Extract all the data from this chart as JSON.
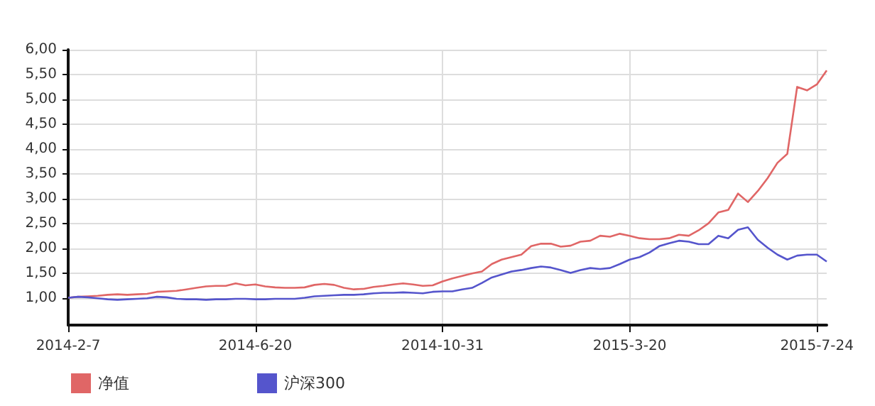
{
  "chart_data": {
    "type": "line",
    "categories": [
      "2014-2-7",
      null,
      null,
      null,
      null,
      null,
      null,
      null,
      null,
      null,
      null,
      null,
      null,
      null,
      null,
      null,
      null,
      null,
      null,
      "2014-6-20",
      null,
      null,
      null,
      null,
      null,
      null,
      null,
      null,
      null,
      null,
      null,
      null,
      null,
      null,
      null,
      null,
      null,
      null,
      "2014-10-31",
      null,
      null,
      null,
      null,
      null,
      null,
      null,
      null,
      null,
      null,
      null,
      null,
      null,
      null,
      null,
      null,
      null,
      null,
      "2015-3-20",
      null,
      null,
      null,
      null,
      null,
      null,
      null,
      null,
      null,
      null,
      null,
      null,
      null,
      null,
      null,
      null,
      null,
      null,
      "2015-7-24",
      null
    ],
    "series": [
      {
        "name": "净值",
        "color": "#e06666",
        "values": [
          1.0,
          1.02,
          1.03,
          1.04,
          1.06,
          1.07,
          1.06,
          1.07,
          1.08,
          1.12,
          1.13,
          1.14,
          1.17,
          1.2,
          1.23,
          1.24,
          1.24,
          1.29,
          1.25,
          1.27,
          1.23,
          1.21,
          1.2,
          1.2,
          1.21,
          1.26,
          1.28,
          1.26,
          1.2,
          1.17,
          1.18,
          1.22,
          1.24,
          1.27,
          1.29,
          1.27,
          1.24,
          1.25,
          1.33,
          1.39,
          1.44,
          1.49,
          1.53,
          1.68,
          1.77,
          1.82,
          1.87,
          2.04,
          2.09,
          2.09,
          2.03,
          2.05,
          2.13,
          2.15,
          2.25,
          2.23,
          2.29,
          2.25,
          2.2,
          2.18,
          2.18,
          2.2,
          2.27,
          2.25,
          2.36,
          2.5,
          2.72,
          2.77,
          3.1,
          2.93,
          3.15,
          3.41,
          3.72,
          3.9,
          5.25,
          5.18,
          5.3,
          5.58
        ]
      },
      {
        "name": "沪深300",
        "color": "#5555cc",
        "values": [
          1.0,
          1.02,
          1.01,
          0.99,
          0.97,
          0.96,
          0.97,
          0.98,
          0.99,
          1.02,
          1.01,
          0.98,
          0.97,
          0.97,
          0.96,
          0.97,
          0.97,
          0.98,
          0.98,
          0.97,
          0.97,
          0.98,
          0.98,
          0.98,
          1.0,
          1.03,
          1.04,
          1.05,
          1.06,
          1.06,
          1.07,
          1.09,
          1.1,
          1.1,
          1.11,
          1.1,
          1.09,
          1.12,
          1.13,
          1.13,
          1.17,
          1.2,
          1.3,
          1.41,
          1.47,
          1.53,
          1.56,
          1.6,
          1.63,
          1.61,
          1.56,
          1.5,
          1.56,
          1.6,
          1.58,
          1.6,
          1.68,
          1.77,
          1.82,
          1.91,
          2.04,
          2.1,
          2.15,
          2.13,
          2.08,
          2.08,
          2.25,
          2.2,
          2.37,
          2.42,
          2.17,
          2.01,
          1.87,
          1.77,
          1.85,
          1.87,
          1.87,
          1.73
        ]
      }
    ],
    "ylim": [
      0.45,
      6
    ],
    "yticks": [
      {
        "value": 1,
        "label": "1,00"
      },
      {
        "value": 1.5,
        "label": "1,50"
      },
      {
        "value": 2,
        "label": "2,00"
      },
      {
        "value": 2.5,
        "label": "2,50"
      },
      {
        "value": 3,
        "label": "3,00"
      },
      {
        "value": 3.5,
        "label": "3,50"
      },
      {
        "value": 4,
        "label": "4,00"
      },
      {
        "value": 4.5,
        "label": "4,50"
      },
      {
        "value": 5,
        "label": "5,00"
      },
      {
        "value": 5.5,
        "label": "5,50"
      },
      {
        "value": 6,
        "label": "6,00"
      }
    ],
    "grid": true,
    "legend": "bottom left",
    "marker": "none",
    "line_style": "solid"
  }
}
